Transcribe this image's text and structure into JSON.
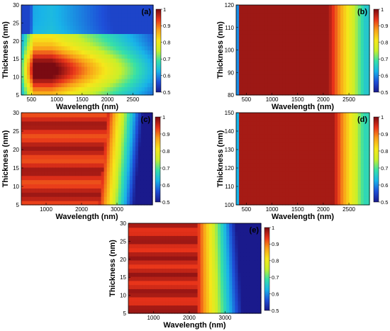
{
  "colormap": {
    "stops": [
      [
        0.0,
        "#1a1a8c"
      ],
      [
        0.125,
        "#1e4fd8"
      ],
      [
        0.25,
        "#19b4e8"
      ],
      [
        0.375,
        "#36e0a8"
      ],
      [
        0.5,
        "#c8ef2a"
      ],
      [
        0.625,
        "#f6e61a"
      ],
      [
        0.75,
        "#f9a019"
      ],
      [
        0.875,
        "#e8331a"
      ],
      [
        1.0,
        "#7a0b12"
      ]
    ]
  },
  "chart_data": [
    {
      "type": "heatmap",
      "panel_label": "(a)",
      "xlabel": "Wavelength (nm)",
      "ylabel": "Thickness (nm)",
      "xlim": [
        300,
        2900
      ],
      "ylim": [
        5,
        30
      ],
      "xticks": [
        500,
        1000,
        1500,
        2000,
        2500
      ],
      "yticks": [
        5,
        10,
        15,
        20,
        25,
        30
      ],
      "colorbar": {
        "min": 0.5,
        "max": 1,
        "ticks": [
          0.5,
          0.6,
          0.7,
          0.8,
          0.9,
          1
        ]
      },
      "pattern": "a"
    },
    {
      "type": "heatmap",
      "panel_label": "(b)",
      "xlabel": "Wavelength (nm)",
      "ylabel": "Thickness (nm)",
      "xlim": [
        300,
        2900
      ],
      "ylim": [
        80,
        120
      ],
      "xticks": [
        500,
        1000,
        1500,
        2000,
        2500
      ],
      "yticks": [
        80,
        90,
        100,
        110,
        120
      ],
      "colorbar": {
        "min": 0.5,
        "max": 1,
        "ticks": [
          0.5,
          0.6,
          0.7,
          0.8,
          0.9,
          1
        ]
      },
      "pattern": "b"
    },
    {
      "type": "heatmap",
      "panel_label": "(c)",
      "xlabel": "Wavelength (nm)",
      "ylabel": "Thickness (nm)",
      "xlim": [
        300,
        4000
      ],
      "ylim": [
        5,
        30
      ],
      "xticks": [
        1000,
        2000,
        3000
      ],
      "yticks": [
        5,
        10,
        15,
        20,
        25,
        30
      ],
      "colorbar": {
        "min": 0.5,
        "max": 1,
        "ticks": [
          0.5,
          0.6,
          0.7,
          0.8,
          0.9,
          1
        ]
      },
      "pattern": "c"
    },
    {
      "type": "heatmap",
      "panel_label": "(d)",
      "xlabel": "Wavelength (nm)",
      "ylabel": "Thickness (nm)",
      "xlim": [
        300,
        2900
      ],
      "ylim": [
        100,
        150
      ],
      "xticks": [
        500,
        1000,
        1500,
        2000,
        2500
      ],
      "yticks": [
        100,
        110,
        120,
        130,
        140,
        150
      ],
      "colorbar": {
        "min": 0.5,
        "max": 1,
        "ticks": [
          0.5,
          0.6,
          0.7,
          0.8,
          0.9,
          1
        ]
      },
      "pattern": "d"
    },
    {
      "type": "heatmap",
      "panel_label": "(e)",
      "xlabel": "Wavelength (nm)",
      "ylabel": "Thickness (nm)",
      "xlim": [
        300,
        4000
      ],
      "ylim": [
        5,
        30
      ],
      "xticks": [
        1000,
        2000,
        3000
      ],
      "yticks": [
        5,
        10,
        15,
        20,
        25,
        30
      ],
      "colorbar": {
        "min": 0.5,
        "max": 1,
        "ticks": [
          0.5,
          0.6,
          0.7,
          0.8,
          0.9,
          1
        ]
      },
      "pattern": "e"
    }
  ]
}
